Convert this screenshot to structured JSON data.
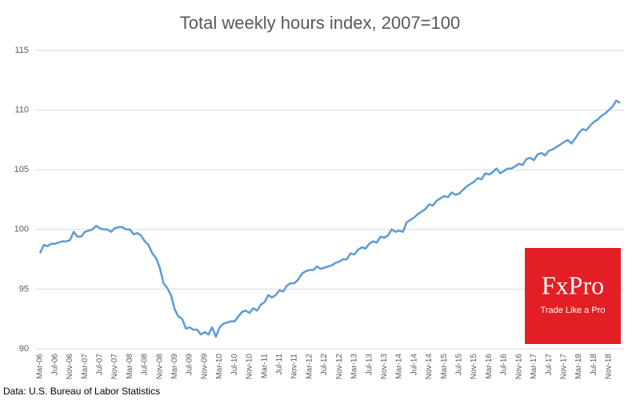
{
  "chart_data": {
    "type": "line",
    "title": "Total weekly hours index, 2007=100",
    "categories": [
      "Mar-06",
      null,
      null,
      null,
      "Jul-06",
      null,
      null,
      null,
      "Nov-06",
      null,
      null,
      null,
      "Mar-07",
      null,
      null,
      null,
      "Jul-07",
      null,
      null,
      null,
      "Nov-07",
      null,
      null,
      null,
      "Mar-08",
      null,
      null,
      null,
      "Jul-08",
      null,
      null,
      null,
      "Nov-08",
      null,
      null,
      null,
      "Mar-09",
      null,
      null,
      null,
      "Jul-09",
      null,
      null,
      null,
      "Nov-09",
      null,
      null,
      null,
      "Mar-10",
      null,
      null,
      null,
      "Jul-10",
      null,
      null,
      null,
      "Nov-10",
      null,
      null,
      null,
      "Mar-11",
      null,
      null,
      null,
      "Jul-11",
      null,
      null,
      null,
      "Nov-11",
      null,
      null,
      null,
      "Mar-12",
      null,
      null,
      null,
      "Jul-12",
      null,
      null,
      null,
      "Nov-12",
      null,
      null,
      null,
      "Mar-13",
      null,
      null,
      null,
      "Jul-13",
      null,
      null,
      null,
      "Nov-13",
      null,
      null,
      null,
      "Mar-14",
      null,
      null,
      null,
      "Jul-14",
      null,
      null,
      null,
      "Nov-14",
      null,
      null,
      null,
      "Mar-15",
      null,
      null,
      null,
      "Jul-15",
      null,
      null,
      null,
      "Nov-15",
      null,
      null,
      null,
      "Mar-16",
      null,
      null,
      null,
      "Jul-16",
      null,
      null,
      null,
      "Nov-16",
      null,
      null,
      null,
      "Mar-17",
      null,
      null,
      null,
      "Jul-17",
      null,
      null,
      null,
      "Nov-17",
      null,
      null,
      null,
      "Mar-18",
      null,
      null,
      null,
      "Jul-18",
      null,
      null,
      null,
      "Nov-18",
      null,
      null,
      null
    ],
    "values": [
      98.0,
      98.7,
      98.6,
      98.8,
      98.8,
      98.9,
      99.0,
      99.0,
      99.1,
      99.8,
      99.4,
      99.4,
      99.8,
      99.9,
      100.0,
      100.3,
      100.1,
      100.0,
      100.0,
      99.8,
      100.1,
      100.2,
      100.2,
      100.0,
      100.0,
      99.6,
      99.7,
      99.5,
      99.0,
      98.7,
      98.0,
      97.6,
      96.8,
      95.5,
      95.1,
      94.5,
      93.3,
      92.7,
      92.5,
      91.7,
      91.8,
      91.6,
      91.6,
      91.2,
      91.4,
      91.2,
      91.8,
      91.0,
      91.8,
      92.1,
      92.2,
      92.3,
      92.3,
      92.7,
      93.1,
      93.2,
      93.0,
      93.4,
      93.2,
      93.7,
      93.9,
      94.5,
      94.3,
      94.5,
      94.9,
      94.8,
      95.3,
      95.5,
      95.5,
      95.8,
      96.3,
      96.5,
      96.6,
      96.6,
      96.9,
      96.7,
      96.8,
      96.9,
      97.0,
      97.2,
      97.3,
      97.5,
      97.5,
      98.0,
      97.9,
      98.3,
      98.5,
      98.4,
      98.8,
      99.0,
      98.9,
      99.4,
      99.3,
      99.5,
      100.0,
      99.8,
      99.9,
      99.8,
      100.6,
      100.8,
      101.0,
      101.3,
      101.5,
      101.7,
      102.1,
      102.0,
      102.4,
      102.6,
      102.8,
      102.7,
      103.1,
      102.9,
      103.0,
      103.3,
      103.6,
      103.8,
      104.0,
      104.3,
      104.2,
      104.7,
      104.6,
      104.8,
      105.1,
      104.7,
      104.9,
      105.1,
      105.1,
      105.3,
      105.5,
      105.4,
      105.9,
      106.0,
      105.8,
      106.3,
      106.4,
      106.2,
      106.6,
      106.7,
      106.9,
      107.1,
      107.3,
      107.5,
      107.2,
      107.6,
      108.1,
      108.4,
      108.3,
      108.7,
      109.0,
      109.2,
      109.5,
      109.7,
      110.0,
      110.3,
      110.8,
      110.6
    ],
    "color": "#5b9bd5",
    "ylim": [
      90,
      115
    ],
    "yticks": [
      90,
      95,
      100,
      105,
      110,
      115
    ],
    "grid": true,
    "source": "Data: U.S. Bureau of Labor Statistics",
    "logo": {
      "name": "FxPro",
      "tagline": "Trade Like a Pro",
      "color": "#e31e24"
    }
  }
}
